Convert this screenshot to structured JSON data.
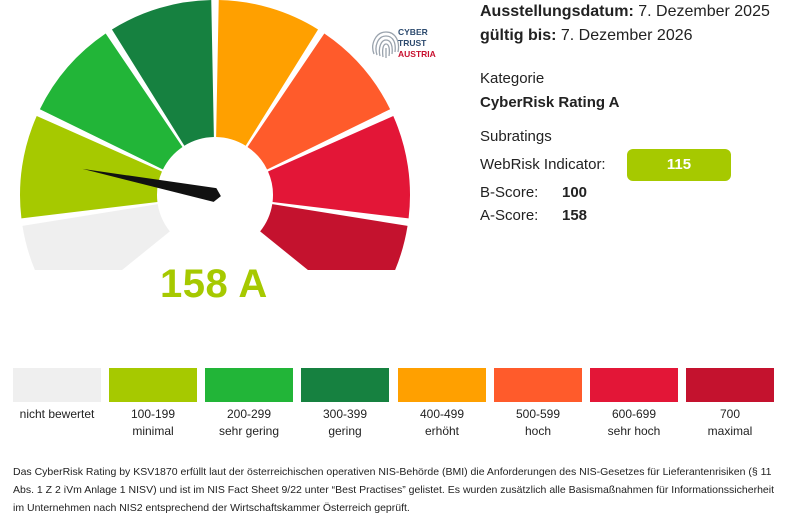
{
  "colors": {
    "none": "#efefef",
    "minimal": "#a6c900",
    "very_low": "#22b538",
    "low": "#168140",
    "elevated": "#ffa000",
    "high": "#ff5b2b",
    "very_high": "#e31637",
    "maximal": "#c4122e",
    "needle": "#111111"
  },
  "gauge": {
    "score_value": 158,
    "score_label": "158 A",
    "scale_min": 0,
    "scale_max": 700
  },
  "logo": {
    "icon": "fingerprint-icon",
    "line1": "CYBER",
    "line2": "TRUST",
    "line3": "AUSTRIA"
  },
  "info": {
    "issued_label": "Ausstellungsdatum:",
    "issued_value": " 7. Dezember 2025",
    "valid_label": "gültig bis:",
    "valid_value": " 7. Dezember 2026",
    "category_label": "Kategorie",
    "category_value": "CyberRisk Rating A",
    "subratings_label": "Subratings",
    "webrisk_label": "WebRisk Indicator:",
    "webrisk_value": "115",
    "bscore_label": "B-Score:",
    "bscore_value": "100",
    "ascore_label": "A-Score:",
    "ascore_value": "158"
  },
  "legend": [
    {
      "range": "nicht bewertet",
      "desc": "",
      "color": "#efefef"
    },
    {
      "range": "100-199",
      "desc": "minimal",
      "color": "#a6c900"
    },
    {
      "range": "200-299",
      "desc": "sehr gering",
      "color": "#22b538"
    },
    {
      "range": "300-399",
      "desc": "gering",
      "color": "#168140"
    },
    {
      "range": "400-499",
      "desc": "erhöht",
      "color": "#ffa000"
    },
    {
      "range": "500-599",
      "desc": "hoch",
      "color": "#ff5b2b"
    },
    {
      "range": "600-699",
      "desc": "sehr hoch",
      "color": "#e31637"
    },
    {
      "range": "700",
      "desc": "maximal",
      "color": "#c4122e"
    }
  ],
  "footer": {
    "text": "Das CyberRisk Rating by KSV1870 erfüllt laut der österreichischen operativen NIS-Behörde (BMI) die Anforderungen des NIS-Gesetzes für Lieferantenrisiken (§ 11 Abs. 1 Z 2 iVm Anlage 1 NISV) und ist im NIS Fact Sheet 9/22 unter “Best Practises” gelistet. Es wurden zusätzlich alle Basismaßnahmen für Informationssicherheit im Unternehmen nach NIS2 entsprechend der Wirtschaftskammer Österreich geprüft."
  }
}
